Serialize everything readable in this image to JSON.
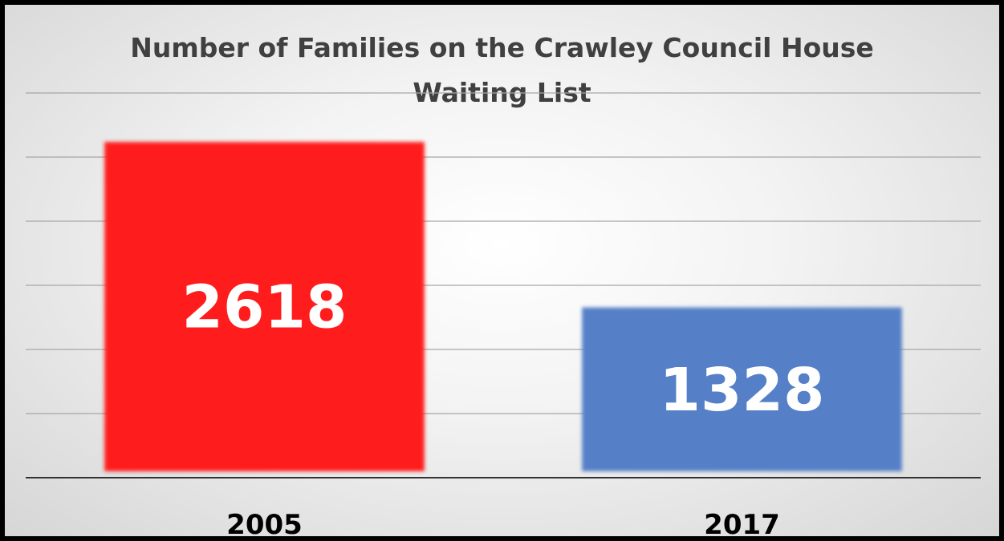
{
  "chart_data": {
    "type": "bar",
    "title": "Number of Families on the Crawley Council House Waiting List",
    "categories": [
      "2005",
      "2017"
    ],
    "values": [
      2618,
      1328
    ],
    "data_labels": [
      "2618",
      "1328"
    ],
    "colors": [
      "#ff1a1a",
      "#5580c8"
    ],
    "xlabel": "",
    "ylabel": "",
    "ylim": [
      0,
      3000
    ],
    "grid": true,
    "legend": "none"
  }
}
